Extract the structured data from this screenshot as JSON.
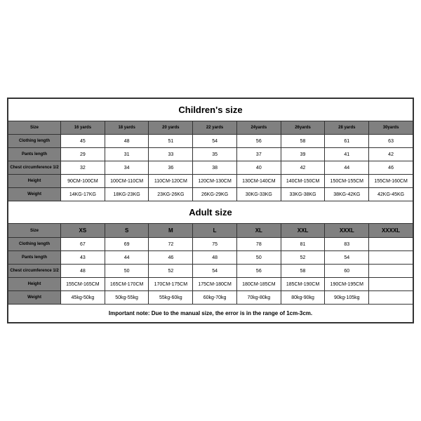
{
  "children": {
    "title": "Children's size",
    "headers": [
      "Size",
      "16 yards",
      "18 yards",
      "20 yards",
      "22 yards",
      "24yards",
      "26yards",
      "28 yards",
      "30yards"
    ],
    "rows": [
      {
        "label": "Clothing length",
        "values": [
          "45",
          "48",
          "51",
          "54",
          "56",
          "58",
          "61",
          "63"
        ]
      },
      {
        "label": "Pants length",
        "values": [
          "29",
          "31",
          "33",
          "35",
          "37",
          "39",
          "41",
          "42"
        ]
      },
      {
        "label": "Chest circumference 1/2",
        "values": [
          "32",
          "34",
          "36",
          "38",
          "40",
          "42",
          "44",
          "46"
        ]
      },
      {
        "label": "Height",
        "values": [
          "90CM-100CM",
          "100CM-110CM",
          "110CM-120CM",
          "120CM-130CM",
          "130CM-140CM",
          "140CM-150CM",
          "150CM-155CM",
          "155CM-160CM"
        ]
      },
      {
        "label": "Weight",
        "values": [
          "14KG-17KG",
          "18KG-23KG",
          "23KG-26KG",
          "26KG-29KG",
          "30KG-33KG",
          "33KG-38KG",
          "38KG-42KG",
          "42KG-45KG"
        ]
      }
    ]
  },
  "adult": {
    "title": "Adult size",
    "headers": [
      "Size",
      "XS",
      "S",
      "M",
      "L",
      "XL",
      "XXL",
      "XXXL",
      "XXXXL"
    ],
    "rows": [
      {
        "label": "Clothing length",
        "values": [
          "67",
          "69",
          "72",
          "75",
          "78",
          "81",
          "83",
          ""
        ]
      },
      {
        "label": "Pants length",
        "values": [
          "43",
          "44",
          "46",
          "48",
          "50",
          "52",
          "54",
          ""
        ]
      },
      {
        "label": "Chest circumference 1/2",
        "values": [
          "48",
          "50",
          "52",
          "54",
          "56",
          "58",
          "60",
          ""
        ]
      },
      {
        "label": "Height",
        "values": [
          "155CM-165CM",
          "165CM-170CM",
          "170CM-175CM",
          "175CM-180CM",
          "180CM-185CM",
          "185CM-190CM",
          "190CM-195CM",
          ""
        ]
      },
      {
        "label": "Weight",
        "values": [
          "45kg-50kg",
          "50kg-55kg",
          "55kg-60kg",
          "60kg-70kg",
          "70kg-80kg",
          "80kg-90kg",
          "90kg-105kg",
          ""
        ]
      }
    ]
  },
  "note": "Important note: Due to the manual size, the error is in the range of 1cm-3cm.",
  "colors": {
    "header_bg": "#808080",
    "border": "#333333",
    "bg": "#ffffff",
    "text": "#000000"
  }
}
